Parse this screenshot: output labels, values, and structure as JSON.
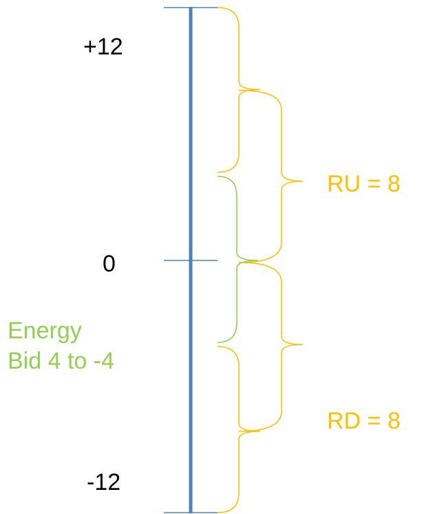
{
  "labels": {
    "top": "+12",
    "zero": "0",
    "bottom": "-12",
    "ru": "RU = 8",
    "rd": "RD = 8",
    "energy_line1": "Energy",
    "energy_line2": "Bid 4 to -4"
  },
  "colors": {
    "axis": "#4F81BD",
    "ticks": "#4F81BD",
    "brace_yellow": "#FFC000",
    "brace_green": "#92D050",
    "text_black": "#000000",
    "text_yellow": "#FFC000",
    "text_green": "#92D050"
  }
}
